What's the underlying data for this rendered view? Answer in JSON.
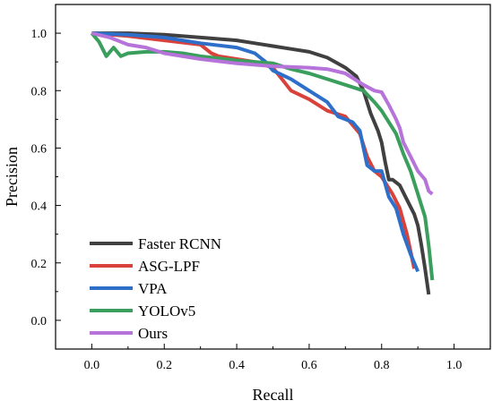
{
  "chart_data": {
    "type": "line",
    "title": "",
    "xlabel": "Recall",
    "ylabel": "Precision",
    "xlim": [
      -0.1,
      1.1
    ],
    "ylim": [
      -0.1,
      1.1
    ],
    "x_ticks": [
      "0.0",
      "0.2",
      "0.4",
      "0.6",
      "0.8",
      "1.0"
    ],
    "y_ticks": [
      "0.0",
      "0.2",
      "0.4",
      "0.6",
      "0.8",
      "1.0"
    ],
    "grid": false,
    "legend_position": "bottom-left",
    "series": [
      {
        "name": "Faster RCNN",
        "color": "#404040",
        "points": [
          [
            0.0,
            1.0
          ],
          [
            0.1,
            1.0
          ],
          [
            0.2,
            0.995
          ],
          [
            0.3,
            0.985
          ],
          [
            0.4,
            0.975
          ],
          [
            0.45,
            0.965
          ],
          [
            0.5,
            0.955
          ],
          [
            0.55,
            0.945
          ],
          [
            0.6,
            0.935
          ],
          [
            0.65,
            0.915
          ],
          [
            0.7,
            0.88
          ],
          [
            0.73,
            0.85
          ],
          [
            0.75,
            0.8
          ],
          [
            0.77,
            0.72
          ],
          [
            0.79,
            0.66
          ],
          [
            0.8,
            0.62
          ],
          [
            0.81,
            0.55
          ],
          [
            0.82,
            0.49
          ],
          [
            0.83,
            0.49
          ],
          [
            0.85,
            0.47
          ],
          [
            0.87,
            0.42
          ],
          [
            0.89,
            0.37
          ],
          [
            0.9,
            0.33
          ],
          [
            0.91,
            0.26
          ],
          [
            0.92,
            0.18
          ],
          [
            0.93,
            0.09
          ]
        ]
      },
      {
        "name": "ASG-LPF",
        "color": "#d9413b",
        "points": [
          [
            0.0,
            1.0
          ],
          [
            0.1,
            0.99
          ],
          [
            0.2,
            0.975
          ],
          [
            0.3,
            0.96
          ],
          [
            0.33,
            0.93
          ],
          [
            0.35,
            0.92
          ],
          [
            0.4,
            0.91
          ],
          [
            0.45,
            0.9
          ],
          [
            0.5,
            0.88
          ],
          [
            0.55,
            0.8
          ],
          [
            0.6,
            0.77
          ],
          [
            0.65,
            0.73
          ],
          [
            0.7,
            0.71
          ],
          [
            0.74,
            0.65
          ],
          [
            0.76,
            0.57
          ],
          [
            0.78,
            0.52
          ],
          [
            0.8,
            0.5
          ],
          [
            0.83,
            0.44
          ],
          [
            0.85,
            0.39
          ],
          [
            0.87,
            0.3
          ],
          [
            0.88,
            0.24
          ],
          [
            0.89,
            0.18
          ]
        ]
      },
      {
        "name": "VPA",
        "color": "#2e6fc9",
        "points": [
          [
            0.0,
            1.0
          ],
          [
            0.1,
            0.995
          ],
          [
            0.2,
            0.985
          ],
          [
            0.3,
            0.965
          ],
          [
            0.4,
            0.95
          ],
          [
            0.45,
            0.93
          ],
          [
            0.48,
            0.9
          ],
          [
            0.5,
            0.87
          ],
          [
            0.55,
            0.84
          ],
          [
            0.6,
            0.8
          ],
          [
            0.65,
            0.76
          ],
          [
            0.68,
            0.71
          ],
          [
            0.7,
            0.7
          ],
          [
            0.72,
            0.69
          ],
          [
            0.74,
            0.66
          ],
          [
            0.75,
            0.6
          ],
          [
            0.76,
            0.54
          ],
          [
            0.78,
            0.52
          ],
          [
            0.8,
            0.52
          ],
          [
            0.82,
            0.43
          ],
          [
            0.84,
            0.39
          ],
          [
            0.86,
            0.3
          ],
          [
            0.88,
            0.23
          ],
          [
            0.9,
            0.17
          ]
        ]
      },
      {
        "name": "YOLOv5",
        "color": "#3a9e5c",
        "points": [
          [
            0.0,
            1.0
          ],
          [
            0.02,
            0.97
          ],
          [
            0.04,
            0.92
          ],
          [
            0.06,
            0.95
          ],
          [
            0.08,
            0.92
          ],
          [
            0.1,
            0.93
          ],
          [
            0.15,
            0.935
          ],
          [
            0.2,
            0.935
          ],
          [
            0.25,
            0.93
          ],
          [
            0.3,
            0.92
          ],
          [
            0.4,
            0.905
          ],
          [
            0.5,
            0.895
          ],
          [
            0.55,
            0.875
          ],
          [
            0.6,
            0.86
          ],
          [
            0.65,
            0.84
          ],
          [
            0.7,
            0.82
          ],
          [
            0.75,
            0.8
          ],
          [
            0.78,
            0.76
          ],
          [
            0.8,
            0.73
          ],
          [
            0.82,
            0.69
          ],
          [
            0.84,
            0.65
          ],
          [
            0.86,
            0.58
          ],
          [
            0.88,
            0.52
          ],
          [
            0.9,
            0.44
          ],
          [
            0.92,
            0.36
          ],
          [
            0.93,
            0.26
          ],
          [
            0.94,
            0.14
          ]
        ]
      },
      {
        "name": "Ours",
        "color": "#b673d9",
        "points": [
          [
            0.0,
            1.0
          ],
          [
            0.05,
            0.985
          ],
          [
            0.1,
            0.96
          ],
          [
            0.15,
            0.95
          ],
          [
            0.2,
            0.93
          ],
          [
            0.3,
            0.91
          ],
          [
            0.4,
            0.895
          ],
          [
            0.5,
            0.885
          ],
          [
            0.6,
            0.88
          ],
          [
            0.65,
            0.875
          ],
          [
            0.7,
            0.86
          ],
          [
            0.75,
            0.82
          ],
          [
            0.78,
            0.8
          ],
          [
            0.8,
            0.795
          ],
          [
            0.82,
            0.75
          ],
          [
            0.84,
            0.7
          ],
          [
            0.85,
            0.67
          ],
          [
            0.86,
            0.62
          ],
          [
            0.88,
            0.57
          ],
          [
            0.9,
            0.52
          ],
          [
            0.92,
            0.49
          ],
          [
            0.93,
            0.45
          ],
          [
            0.94,
            0.44
          ]
        ]
      }
    ]
  }
}
